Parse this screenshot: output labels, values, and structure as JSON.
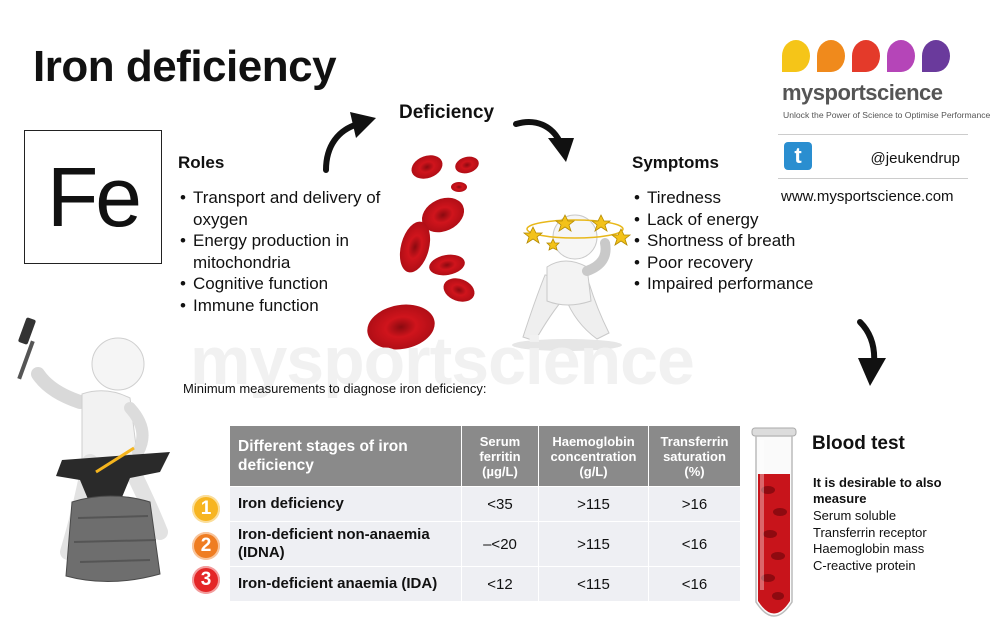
{
  "title": "Iron deficiency",
  "element_symbol": "Fe",
  "deficiency_label": "Deficiency",
  "roles": {
    "heading": "Roles",
    "items": [
      "Transport and delivery of oxygen",
      "Energy production in mitochondria",
      "Cognitive function",
      "Immune function"
    ]
  },
  "symptoms": {
    "heading": "Symptoms",
    "items": [
      "Tiredness",
      "Lack of energy",
      "Shortness of breath",
      "Poor recovery",
      "Impaired performance"
    ]
  },
  "brand": {
    "name": "mysportscience",
    "tagline": "Unlock the Power of Science to Optimise Performance",
    "twitter_handle": "@jeukendrup",
    "website": "www.mysportscience.com",
    "dot_colors": [
      "#f5c518",
      "#f08a1c",
      "#e43a2a",
      "#b545b8",
      "#6a3a9c"
    ]
  },
  "watermark": "mysportscience",
  "measurements_label": "Minimum measurements to diagnose iron deficiency:",
  "table": {
    "headers": [
      "Different stages of iron deficiency",
      "Serum ferritin (µg/L)",
      "Haemoglobin concentration (g/L)",
      "Transferrin saturation (%)"
    ],
    "rows": [
      {
        "number": "1",
        "stage": "Iron deficiency",
        "ferritin": "<35",
        "haemoglobin": ">115",
        "transferrin": ">16"
      },
      {
        "number": "2",
        "stage": "Iron-deficient non-anaemia (IDNA)",
        "ferritin": "–<20",
        "haemoglobin": ">115",
        "transferrin": "<16"
      },
      {
        "number": "3",
        "stage": "Iron-deficient anaemia (IDA)",
        "ferritin": "<12",
        "haemoglobin": "<115",
        "transferrin": "<16"
      }
    ]
  },
  "blood_test": {
    "heading": "Blood test",
    "desirable": "It is desirable to also measure",
    "items": [
      "Serum soluble",
      "Transferrin receptor",
      "Haemoglobin mass",
      "C-reactive protein"
    ]
  },
  "colors": {
    "stage_1": "#f7b521",
    "stage_2": "#ef7d22",
    "stage_3": "#e42627",
    "table_header": "#8a8a8a",
    "table_cell": "#eeeff3",
    "blood_red": "#c8141b",
    "twitter_blue": "#2a8ed0"
  },
  "icons": {
    "deficiency_arrows": "curved-arrow-icon",
    "twitter": "twitter-icon",
    "figures": [
      "blacksmith-figure",
      "dizzy-figure"
    ],
    "blood_cells": "red-blood-cell-icon",
    "test_tube": "test-tube-icon"
  }
}
